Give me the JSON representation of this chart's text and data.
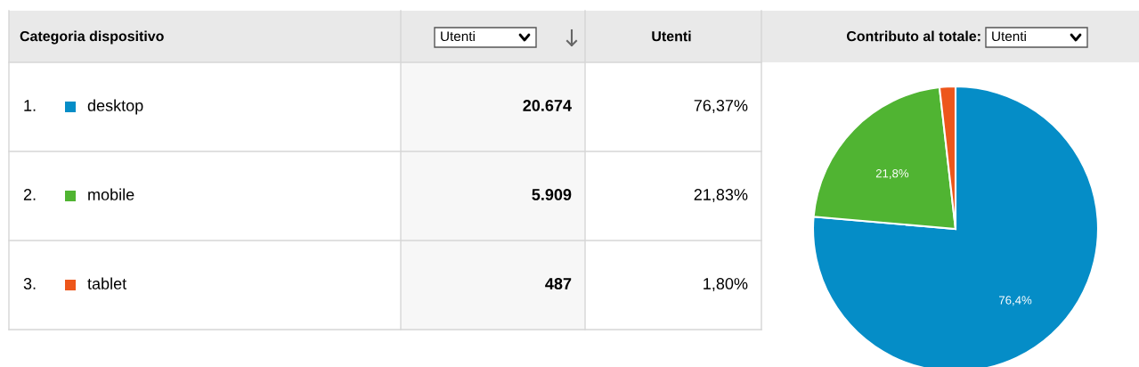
{
  "chart_data": {
    "type": "pie",
    "categories": [
      "desktop",
      "mobile",
      "tablet"
    ],
    "values": [
      76.37,
      21.83,
      1.8
    ],
    "colors": [
      "#058dc7",
      "#50b432",
      "#ed561b"
    ],
    "value_labels": [
      "76,4%",
      "21,8%",
      null
    ],
    "legend": "left",
    "annotations": [
      "Categoria dispositivo",
      "Utenti",
      "Utenti",
      "Contributo al totale:",
      "Utenti",
      "1.",
      "20.674",
      "76,37%",
      "2.",
      "5.909",
      "21,83%",
      "3.",
      "487",
      "1,80%"
    ]
  }
}
